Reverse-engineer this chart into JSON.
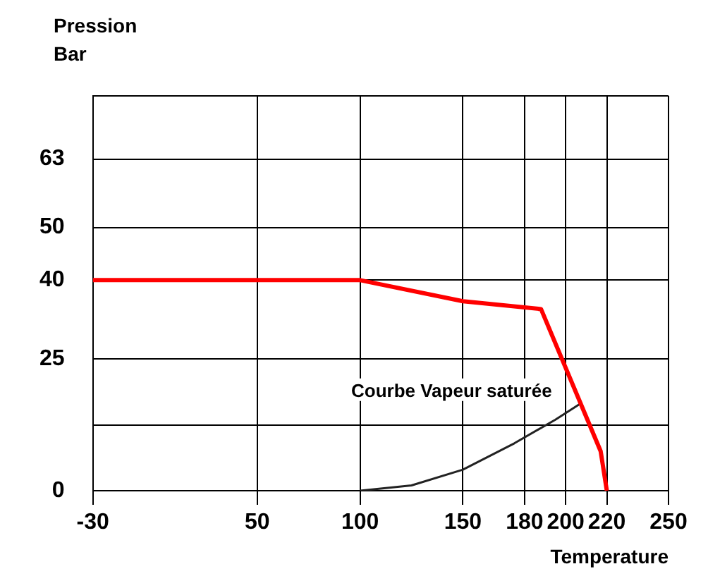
{
  "chart_data": {
    "type": "line",
    "ylabel": "Pression Bar",
    "xlabel": "Temperature",
    "xlim": [
      -30,
      250
    ],
    "xticks": [
      -30,
      50,
      100,
      150,
      180,
      200,
      220,
      250
    ],
    "ylim": [
      0,
      75
    ],
    "yticks": [
      0,
      {
        "value": 12.5,
        "label": null
      },
      25,
      40,
      50,
      63,
      {
        "value": 75,
        "label": null
      }
    ],
    "grid": true,
    "legend": false,
    "marker": "none",
    "series": [
      {
        "color": "#ff0000",
        "x": [
          -30,
          100,
          150,
          188,
          217,
          220
        ],
        "values": [
          40,
          40,
          36,
          34.5,
          7.5,
          0
        ]
      },
      {
        "name": "Courbe Vapeur saturée",
        "color": "#222222",
        "x": [
          100,
          125,
          150,
          175,
          195,
          207
        ],
        "values": [
          0,
          1,
          4,
          9,
          13.5,
          16.5
        ]
      }
    ]
  }
}
